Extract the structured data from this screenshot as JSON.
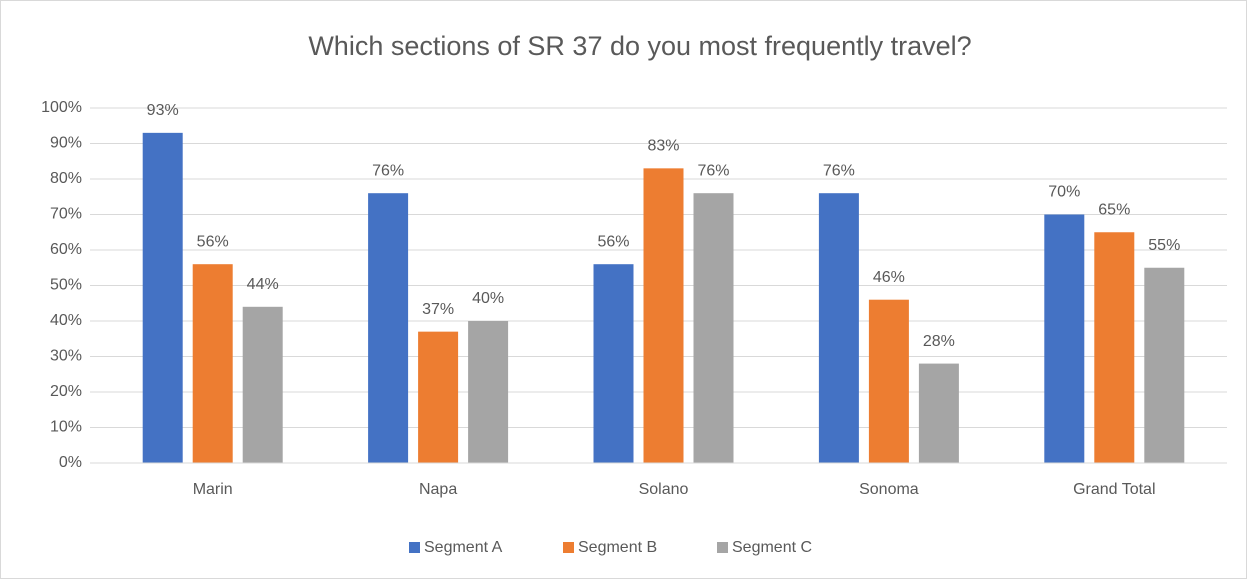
{
  "chart_data": {
    "type": "bar",
    "title": "Which sections of SR 37 do you most frequently travel?",
    "categories": [
      "Marin",
      "Napa",
      "Solano",
      "Sonoma",
      "Grand Total"
    ],
    "series": [
      {
        "name": "Segment A",
        "color": "#4472c4",
        "values": [
          93,
          76,
          56,
          76,
          70
        ],
        "value_labels": [
          "93%",
          "76%",
          "56%",
          "76%",
          "70%"
        ]
      },
      {
        "name": "Segment B",
        "color": "#ed7d31",
        "values": [
          56,
          37,
          83,
          46,
          65
        ],
        "value_labels": [
          "56%",
          "37%",
          "83%",
          "46%",
          "65%"
        ]
      },
      {
        "name": "Segment C",
        "color": "#a5a5a5",
        "values": [
          44,
          40,
          76,
          28,
          55
        ],
        "value_labels": [
          "44%",
          "40%",
          "76%",
          "28%",
          "55%"
        ]
      }
    ],
    "ylim": [
      0,
      100
    ],
    "yticks": [
      {
        "value": 0,
        "label": "0%"
      },
      {
        "value": 10,
        "label": "10%"
      },
      {
        "value": 20,
        "label": "20%"
      },
      {
        "value": 30,
        "label": "30%"
      },
      {
        "value": 40,
        "label": "40%"
      },
      {
        "value": 50,
        "label": "50%"
      },
      {
        "value": 60,
        "label": "60%"
      },
      {
        "value": 70,
        "label": "70%"
      },
      {
        "value": 80,
        "label": "80%"
      },
      {
        "value": 90,
        "label": "90%"
      },
      {
        "value": 100,
        "label": "100%"
      }
    ],
    "grid": true,
    "legend": "bottom"
  }
}
